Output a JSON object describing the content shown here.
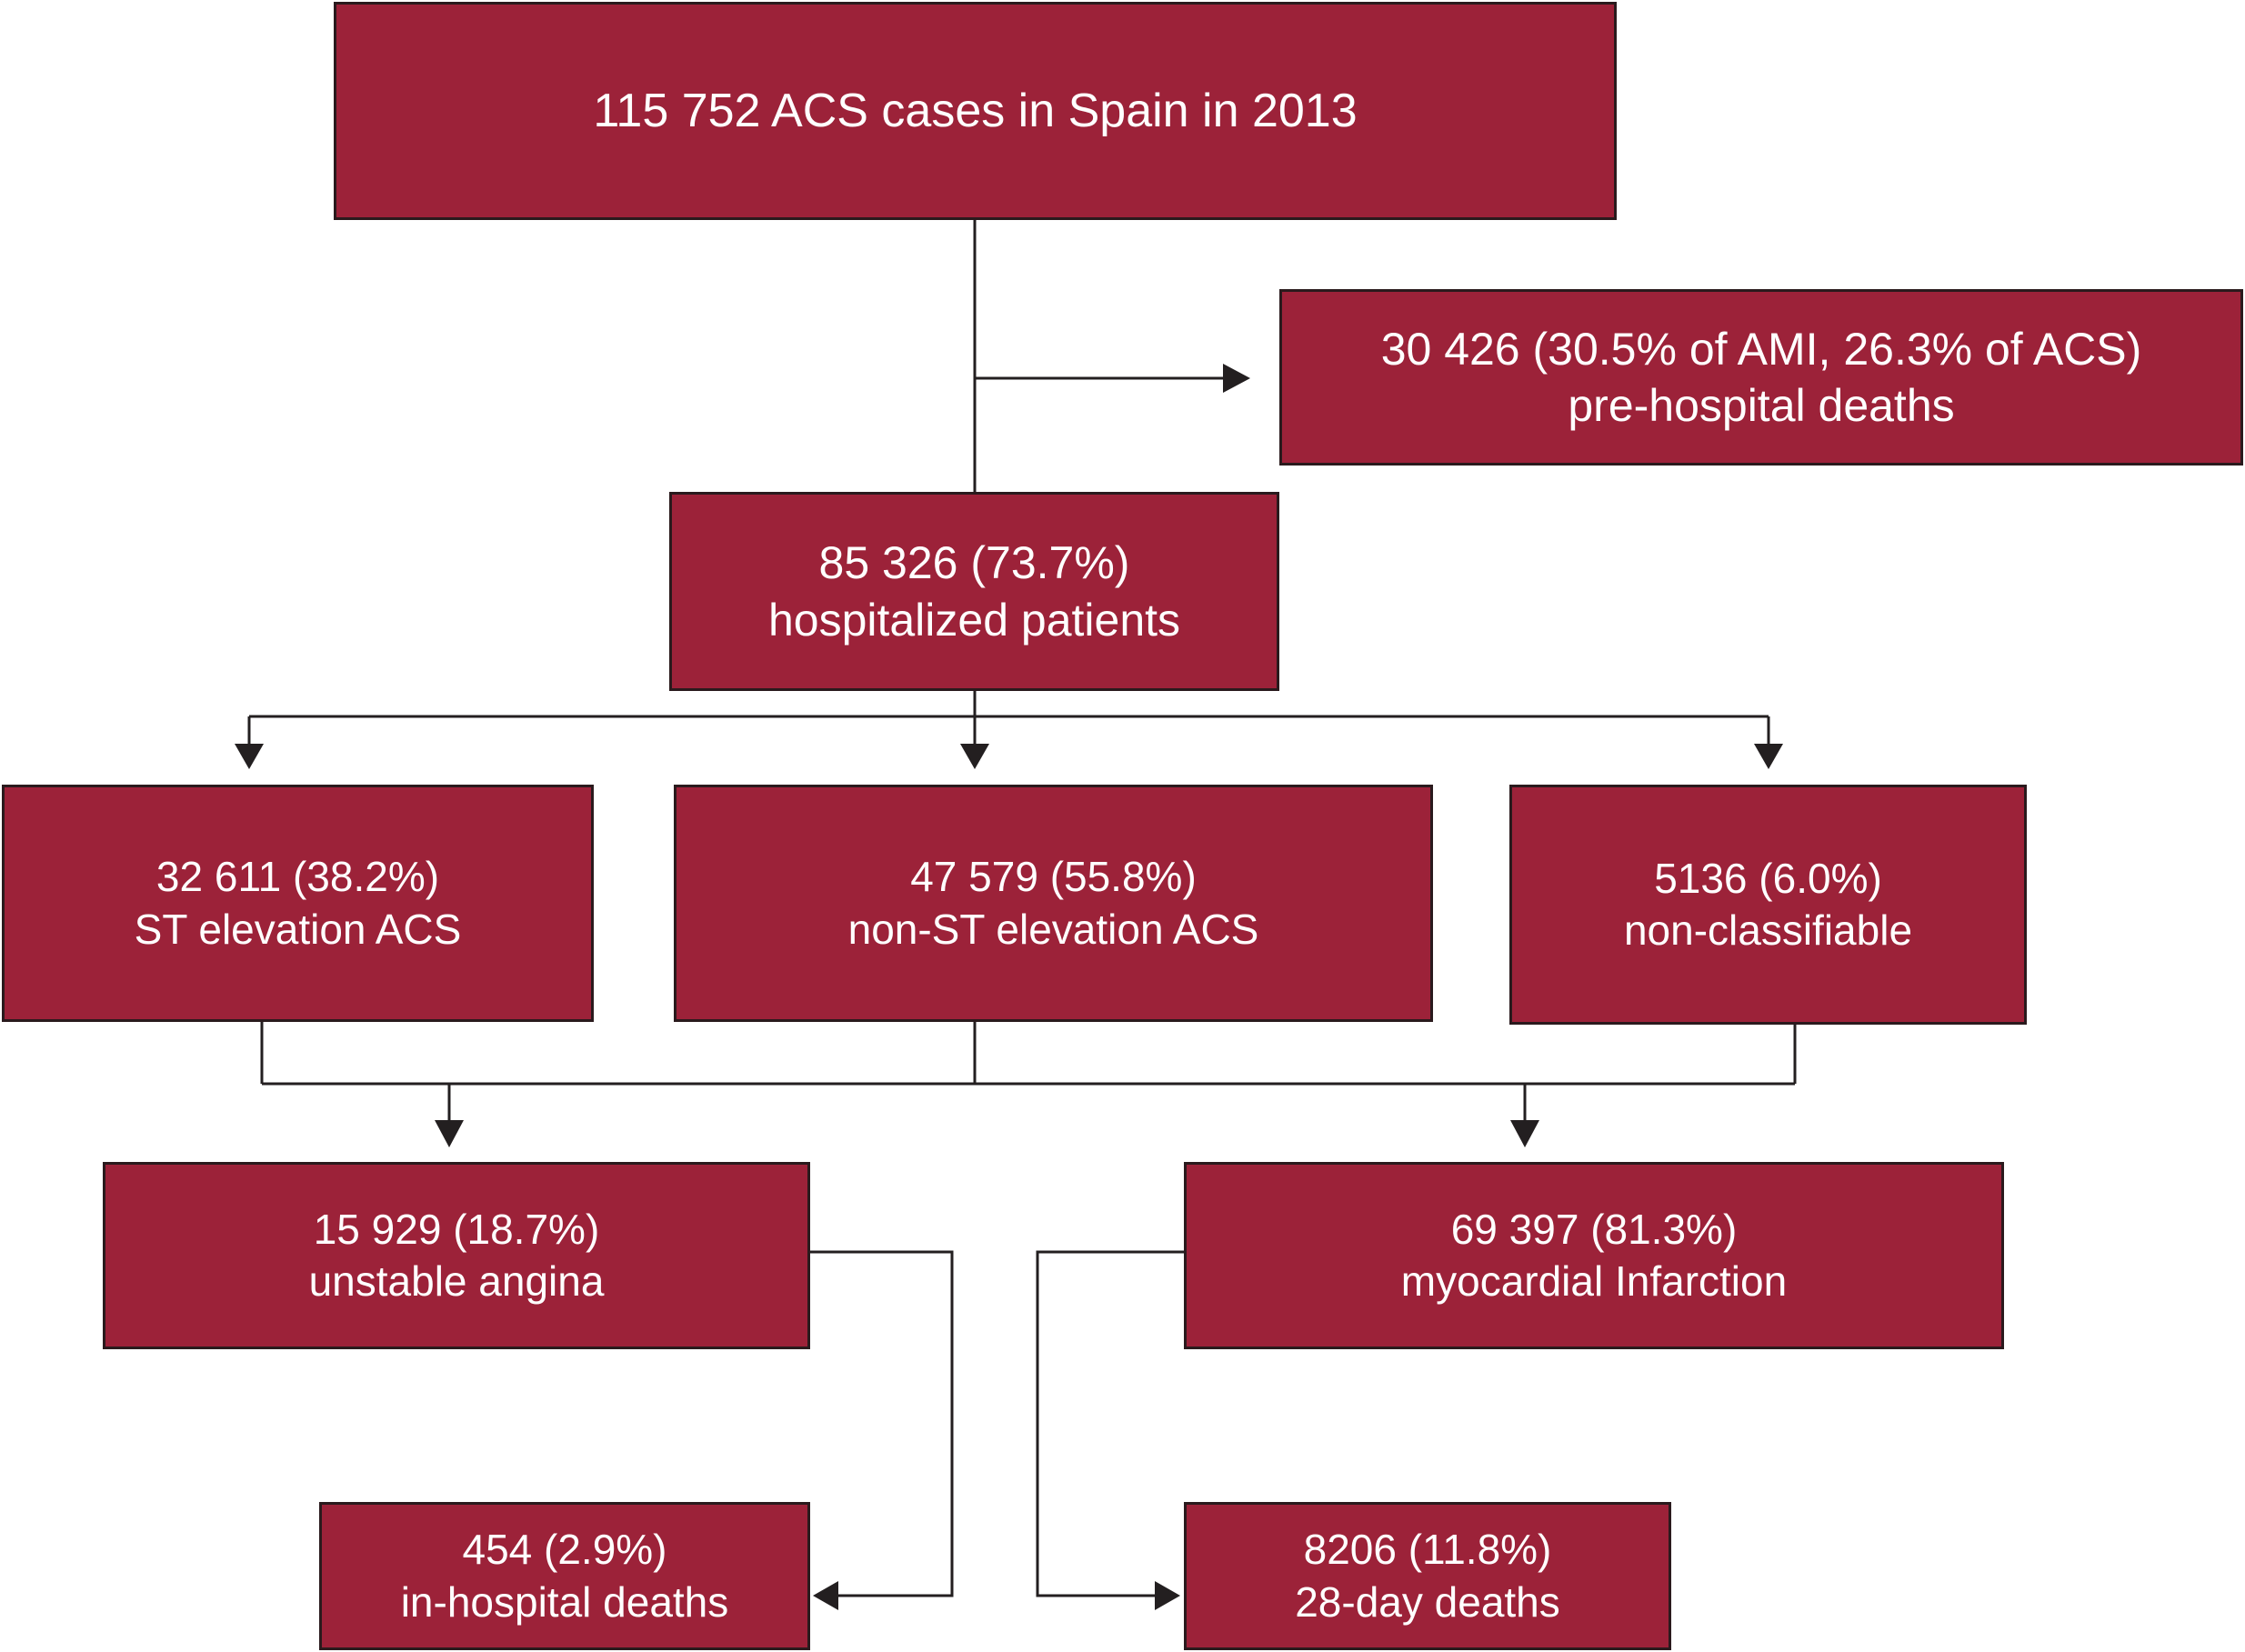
{
  "colors": {
    "box_fill": "#9c2239",
    "box_border": "#2a1a1d",
    "box_text": "#ffffff",
    "connector": "#231f20",
    "background": "#ffffff"
  },
  "nodes": {
    "total": {
      "lines": [
        "115 752 ACS cases in Spain in 2013"
      ]
    },
    "prehospital": {
      "lines": [
        "30 426 (30.5% of AMI, 26.3% of ACS)",
        "pre-hospital deaths"
      ]
    },
    "hospitalized": {
      "lines": [
        "85 326 (73.7%)",
        "hospitalized patients"
      ]
    },
    "stemi": {
      "lines": [
        "32 611 (38.2%)",
        "ST elevation ACS"
      ]
    },
    "nstemi": {
      "lines": [
        "47 579 (55.8%)",
        "non-ST elevation ACS"
      ]
    },
    "nonclass": {
      "lines": [
        "5136 (6.0%)",
        "non-classifiable"
      ]
    },
    "unstable_angina": {
      "lines": [
        "15 929 (18.7%)",
        "unstable angina"
      ]
    },
    "mi": {
      "lines": [
        "69 397 (81.3%)",
        "myocardial Infarction"
      ]
    },
    "inhosp_deaths": {
      "lines": [
        "454 (2.9%)",
        "in-hospital deaths"
      ]
    },
    "deaths_28day": {
      "lines": [
        "8206 (11.8%)",
        "28-day deaths"
      ]
    }
  }
}
